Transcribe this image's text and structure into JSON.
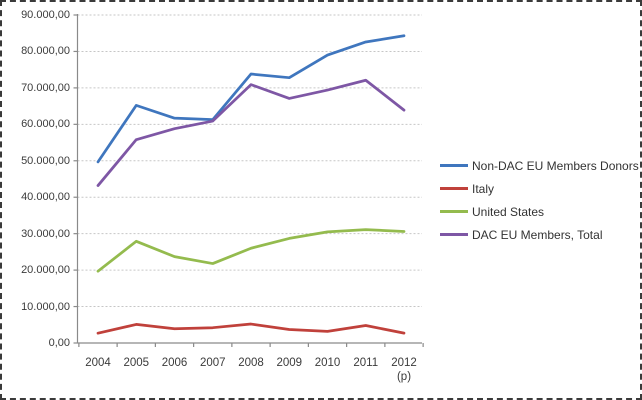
{
  "window": {
    "background": "#ffffff",
    "border_color": "#3a3a3a"
  },
  "chart_data": {
    "type": "line",
    "title": "",
    "xlabel": "",
    "ylabel": "",
    "categories": [
      "2004",
      "2005",
      "2006",
      "2007",
      "2008",
      "2009",
      "2010",
      "2011",
      "2012"
    ],
    "last_category_note": "(p)",
    "series": [
      {
        "name": "Non-DAC EU Members Donors",
        "color": "#3F76BE",
        "values": [
          49700,
          65200,
          61700,
          61300,
          73800,
          72800,
          79000,
          82600,
          84300
        ]
      },
      {
        "name": "Italy",
        "color": "#C0413B",
        "values": [
          2700,
          5100,
          3900,
          4200,
          5200,
          3700,
          3200,
          4800,
          2700
        ]
      },
      {
        "name": "United States",
        "color": "#94BB4E",
        "values": [
          19700,
          27900,
          23700,
          21800,
          26000,
          28700,
          30500,
          31100,
          30600
        ]
      },
      {
        "name": "DAC EU Members, Total",
        "color": "#7E57A5",
        "values": [
          43200,
          55800,
          58800,
          60900,
          70900,
          67100,
          69400,
          72100,
          63900
        ]
      }
    ],
    "ylim": [
      0,
      90000
    ],
    "ytick_step": 10000,
    "ytick_labels": [
      "0,00",
      "10.000,00",
      "20.000,00",
      "30.000,00",
      "40.000,00",
      "50.000,00",
      "60.000,00",
      "70.000,00",
      "80.000,00",
      "90.000,00"
    ],
    "grid": true,
    "legend_position": "right",
    "colors": {
      "gridline": "#c6c6c6",
      "axis": "#8a8a8a",
      "tick_text": "#3b3b3b"
    }
  }
}
